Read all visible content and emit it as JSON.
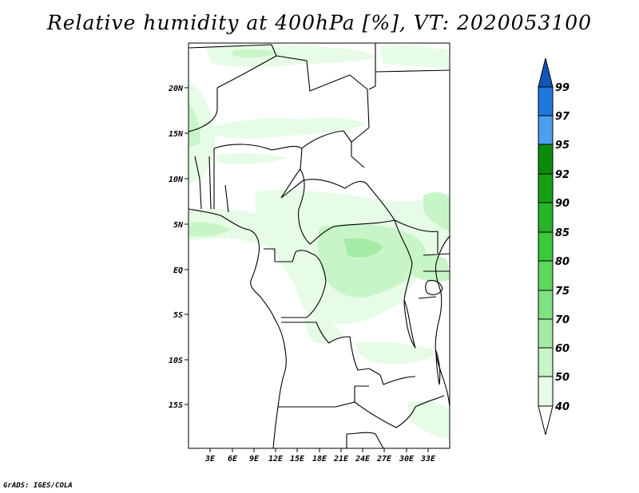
{
  "title": "Relative humidity at 400hPa [%], VT: 2020053100",
  "credit": "GrADS: IGES/COLA",
  "map": {
    "lon_range": [
      0,
      36
    ],
    "lat_range": [
      -20,
      25
    ],
    "lat_labels": [
      "20N",
      "15N",
      "10N",
      "5N",
      "EQ",
      "5S",
      "10S",
      "15S"
    ],
    "lon_labels": [
      "3E",
      "6E",
      "9E",
      "12E",
      "15E",
      "18E",
      "21E",
      "24E",
      "27E",
      "30E",
      "33E"
    ]
  },
  "colorbar": {
    "levels": [
      "40",
      "50",
      "60",
      "70",
      "75",
      "80",
      "85",
      "90",
      "92",
      "95",
      "97",
      "99"
    ],
    "colors": [
      "#ffffff",
      "#e6fce6",
      "#c8f5c8",
      "#a5eba5",
      "#82e182",
      "#5fd75f",
      "#3cc83c",
      "#28b428",
      "#16a016",
      "#0a8c0a",
      "#4a9fef",
      "#2277dd",
      "#1155bb"
    ]
  }
}
